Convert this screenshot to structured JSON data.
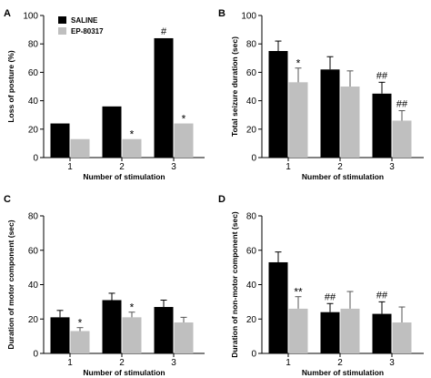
{
  "colors": {
    "saline": "#000000",
    "ep80317": "#bfbfbf",
    "axis": "#000000",
    "error_bar": "#555555"
  },
  "legend": {
    "entries": [
      {
        "name": "SALINE",
        "color": "#000000"
      },
      {
        "name": "EP-80317",
        "color": "#bfbfbf"
      }
    ],
    "placement": "top-left"
  },
  "chart_data": [
    {
      "panel": "A",
      "type": "bar",
      "xlabel": "Number of stimulation",
      "ylabel": "Loss of posture (%)",
      "ylim": [
        0,
        100
      ],
      "yticks": [
        0,
        20,
        40,
        60,
        80,
        100
      ],
      "categories": [
        "1",
        "2",
        "3"
      ],
      "series": [
        {
          "name": "SALINE",
          "values": [
            24,
            36,
            84
          ],
          "errors": [
            0,
            0,
            0
          ],
          "annotations": [
            "",
            "",
            "#"
          ]
        },
        {
          "name": "EP-80317",
          "values": [
            13,
            13,
            24
          ],
          "errors": [
            0,
            0,
            0
          ],
          "annotations": [
            "",
            "*",
            "*"
          ]
        }
      ]
    },
    {
      "panel": "B",
      "type": "bar",
      "xlabel": "Number of stimulation",
      "ylabel": "Total seizure duration (sec)",
      "ylim": [
        0,
        100
      ],
      "yticks": [
        0,
        20,
        40,
        60,
        80,
        100
      ],
      "categories": [
        "1",
        "2",
        "3"
      ],
      "series": [
        {
          "name": "SALINE",
          "values": [
            75,
            62,
            45
          ],
          "errors": [
            7,
            9,
            8
          ],
          "annotations": [
            "",
            "",
            "##"
          ]
        },
        {
          "name": "EP-80317",
          "values": [
            53,
            50,
            26
          ],
          "errors": [
            10,
            11,
            7
          ],
          "annotations": [
            "*",
            "",
            "##"
          ]
        }
      ]
    },
    {
      "panel": "C",
      "type": "bar",
      "xlabel": "Number of stimulation",
      "ylabel": "Duration of motor component (sec)",
      "ylim": [
        0,
        80
      ],
      "yticks": [
        0,
        20,
        40,
        60,
        80
      ],
      "categories": [
        "1",
        "2",
        "3"
      ],
      "series": [
        {
          "name": "SALINE",
          "values": [
            21,
            31,
            27
          ],
          "errors": [
            4,
            4,
            4
          ],
          "annotations": [
            "",
            "",
            ""
          ]
        },
        {
          "name": "EP-80317",
          "values": [
            13,
            21,
            18
          ],
          "errors": [
            2,
            3,
            3
          ],
          "annotations": [
            "*",
            "*",
            ""
          ]
        }
      ]
    },
    {
      "panel": "D",
      "type": "bar",
      "xlabel": "Number of stimulation",
      "ylabel": "Duration of non-motor component (sec)",
      "ylim": [
        0,
        80
      ],
      "yticks": [
        0,
        20,
        40,
        60,
        80
      ],
      "categories": [
        "1",
        "2",
        "3"
      ],
      "series": [
        {
          "name": "SALINE",
          "values": [
            53,
            24,
            23
          ],
          "errors": [
            6,
            5,
            7
          ],
          "annotations": [
            "",
            "##",
            "##"
          ]
        },
        {
          "name": "EP-80317",
          "values": [
            26,
            26,
            18
          ],
          "errors": [
            7,
            10,
            9
          ],
          "annotations": [
            "**",
            "",
            ""
          ]
        }
      ]
    }
  ]
}
